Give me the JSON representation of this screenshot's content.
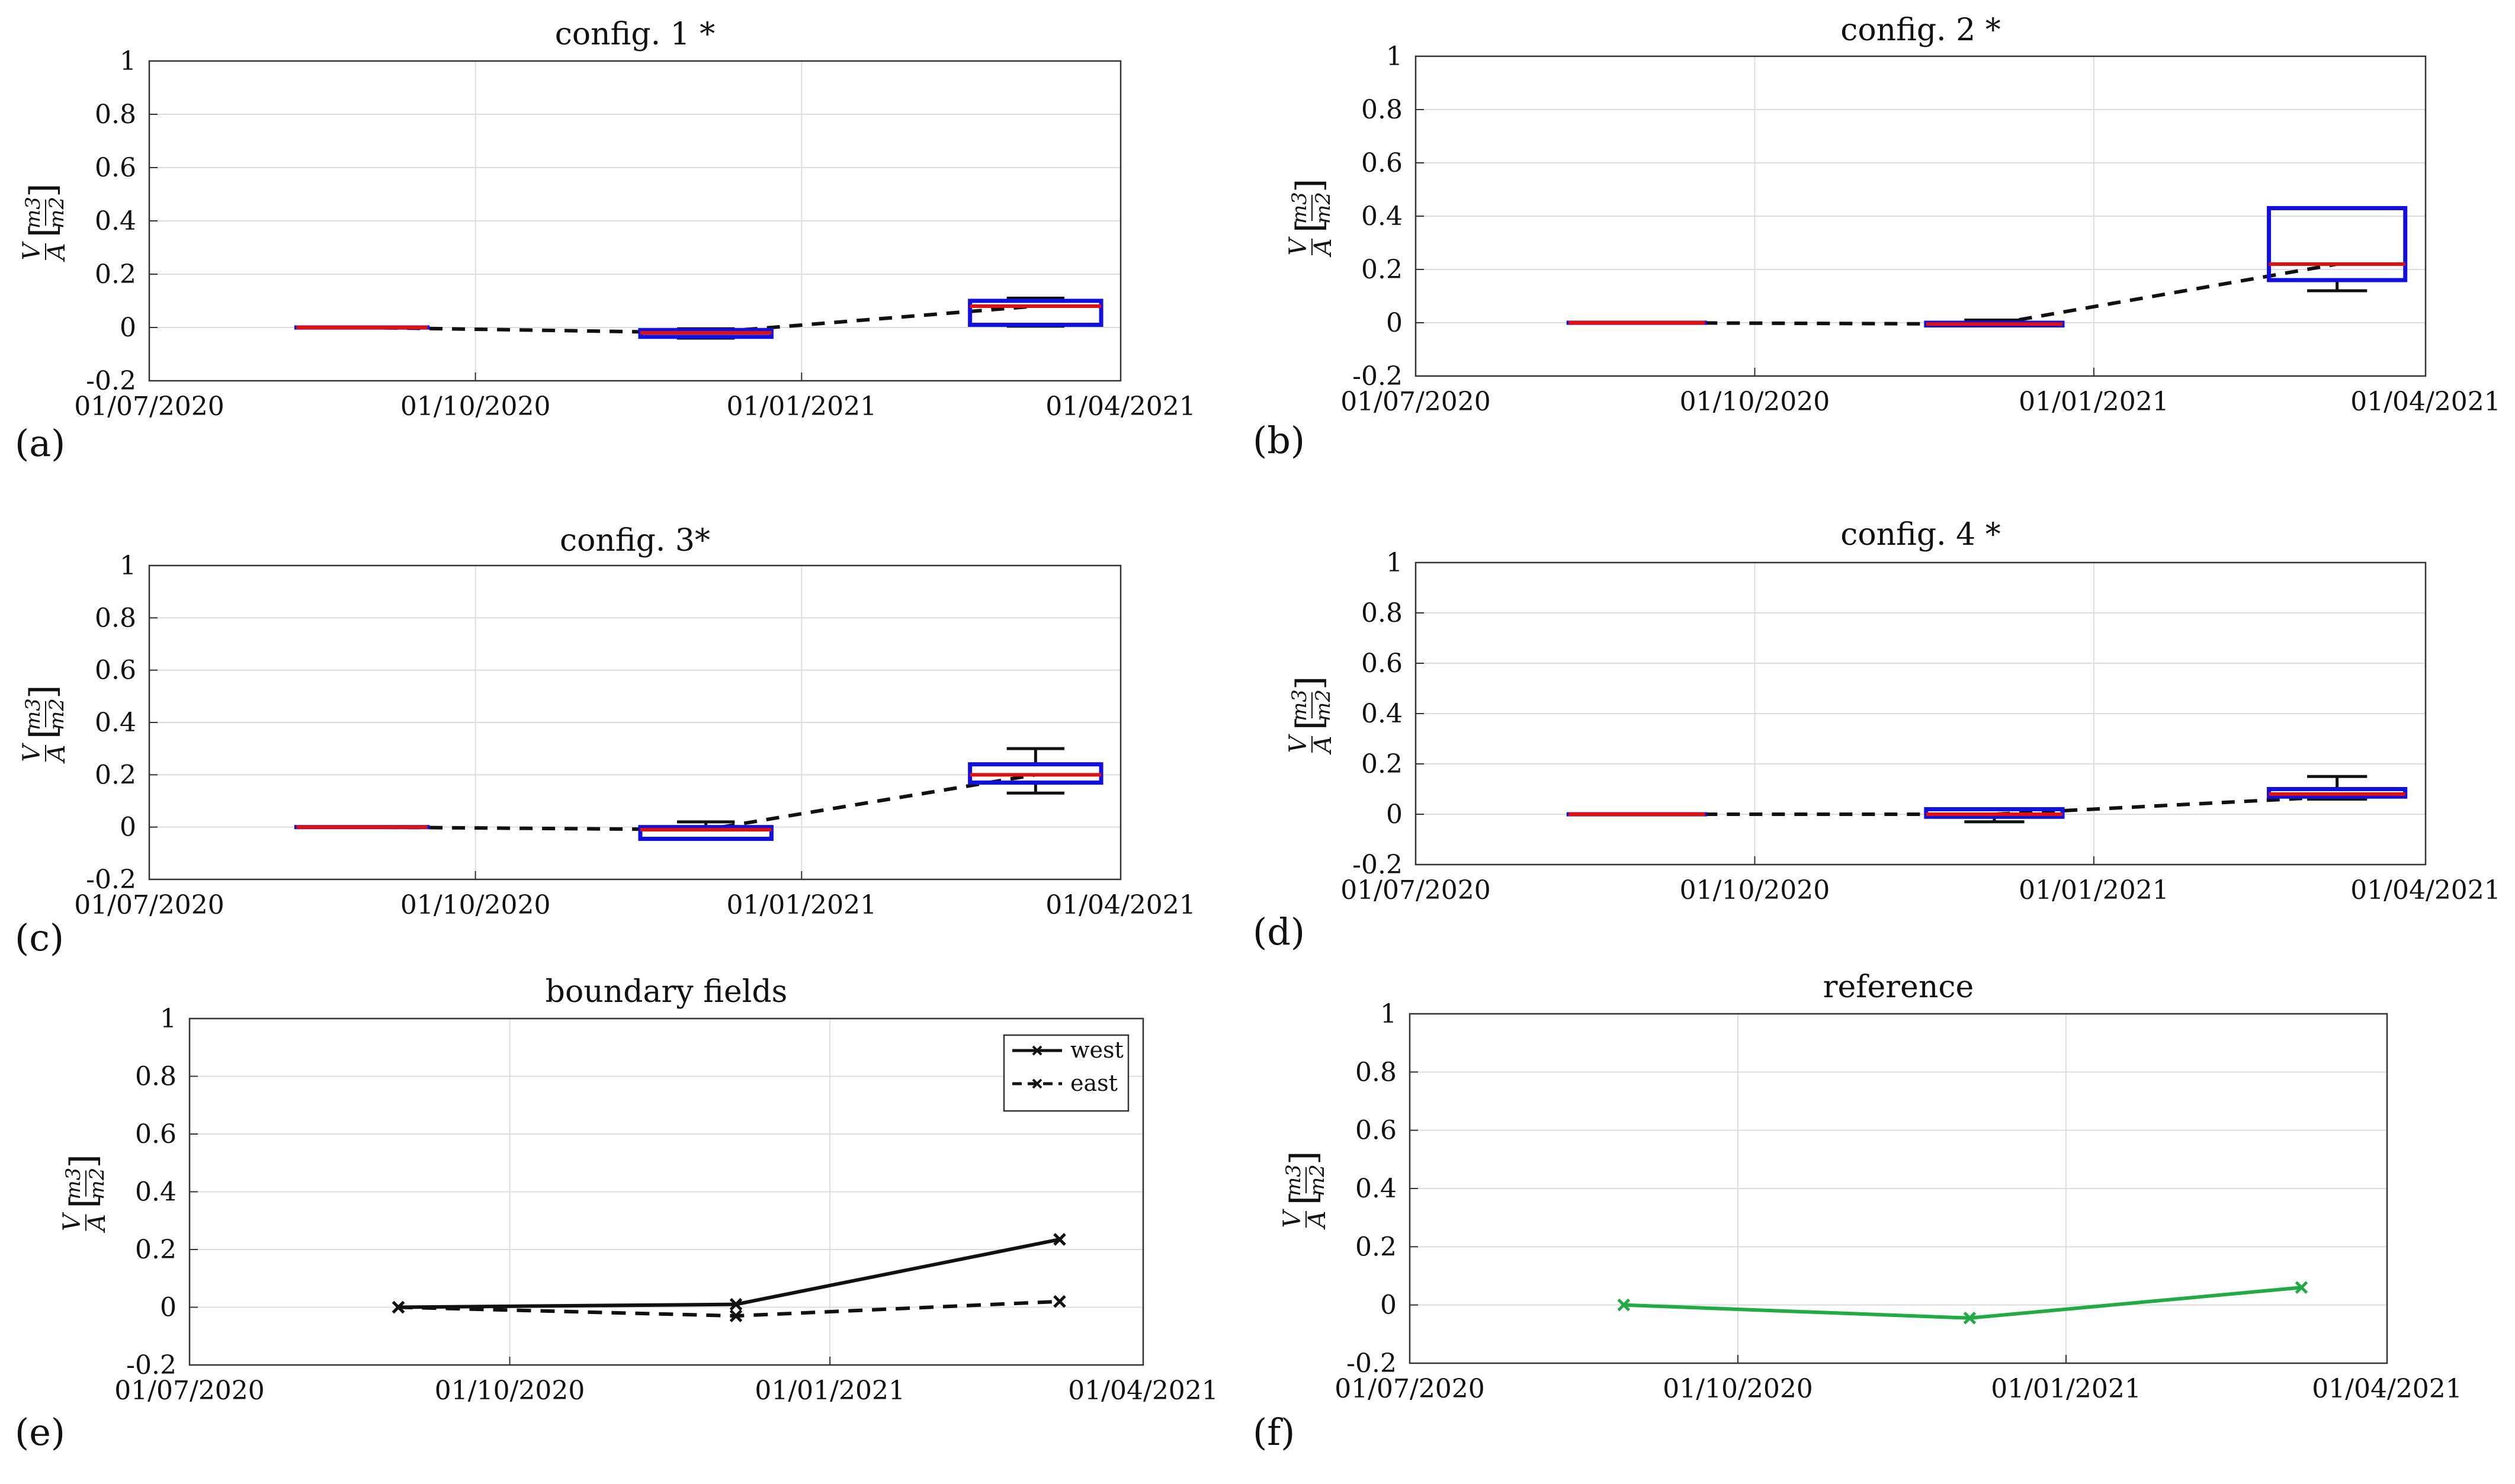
{
  "figure": {
    "panel_labels": [
      "(a)",
      "(b)",
      "(c)",
      "(d)",
      "(e)",
      "(f)"
    ],
    "ylabel": "V/A [m³/m²]",
    "ylabel_parts": {
      "num": "V",
      "den": "A",
      "unit_num": "m",
      "unit_num_exp": "3",
      "unit_den": "m",
      "unit_den_exp": "2"
    }
  },
  "colors": {
    "box": "#1010e0",
    "median": "#e01010",
    "whisker": "#111111",
    "mean_line": "#111111",
    "reference": "#22aa44",
    "grid": "#dddddd",
    "axes": "#333333"
  },
  "chart_data": [
    {
      "type": "box",
      "title": "config. 1 *",
      "xlabel": "",
      "ylabel": "V/A [m³/m²]",
      "xticks": [
        "01/07/2020",
        "01/10/2020",
        "01/01/2021",
        "01/04/2021"
      ],
      "xlim": [
        "2020-07-01",
        "2021-04-01"
      ],
      "ylim": [
        -0.2,
        1
      ],
      "yticks": [
        "-0.2",
        "0",
        "0.2",
        "0.4",
        "0.6",
        "0.8",
        "1"
      ],
      "grid": true,
      "boxes": [
        {
          "date": "2020-08-30",
          "q1": 0,
          "median": 0,
          "q3": 0,
          "whisker_low": 0,
          "whisker_high": 0
        },
        {
          "date": "2020-12-05",
          "q1": -0.035,
          "median": -0.02,
          "q3": -0.01,
          "whisker_low": -0.04,
          "whisker_high": -0.005
        },
        {
          "date": "2021-03-08",
          "q1": 0.01,
          "median": 0.08,
          "q3": 0.1,
          "whisker_low": 0.005,
          "whisker_high": 0.11
        }
      ],
      "mean_line": [
        0,
        -0.02,
        0.08
      ]
    },
    {
      "type": "box",
      "title": "config. 2 *",
      "xlabel": "",
      "ylabel": "V/A [m³/m²]",
      "xticks": [
        "01/07/2020",
        "01/10/2020",
        "01/01/2021",
        "01/04/2021"
      ],
      "xlim": [
        "2020-07-01",
        "2021-04-01"
      ],
      "ylim": [
        -0.2,
        1
      ],
      "yticks": [
        "-0.2",
        "0",
        "0.2",
        "0.4",
        "0.6",
        "0.8",
        "1"
      ],
      "grid": true,
      "boxes": [
        {
          "date": "2020-08-30",
          "q1": 0,
          "median": 0,
          "q3": 0,
          "whisker_low": 0,
          "whisker_high": 0
        },
        {
          "date": "2020-12-05",
          "q1": -0.01,
          "median": -0.005,
          "q3": 0.0,
          "whisker_low": -0.01,
          "whisker_high": 0.01
        },
        {
          "date": "2021-03-08",
          "q1": 0.16,
          "median": 0.22,
          "q3": 0.43,
          "whisker_low": 0.12,
          "whisker_high": 0.43
        }
      ],
      "mean_line": [
        0,
        -0.005,
        0.22
      ]
    },
    {
      "type": "box",
      "title": "config. 3*",
      "xlabel": "",
      "ylabel": "V/A [m³/m²]",
      "xticks": [
        "01/07/2020",
        "01/10/2020",
        "01/01/2021",
        "01/04/2021"
      ],
      "xlim": [
        "2020-07-01",
        "2021-04-01"
      ],
      "ylim": [
        -0.2,
        1
      ],
      "yticks": [
        "-0.2",
        "0",
        "0.2",
        "0.4",
        "0.6",
        "0.8",
        "1"
      ],
      "grid": true,
      "boxes": [
        {
          "date": "2020-08-30",
          "q1": 0,
          "median": 0,
          "q3": 0,
          "whisker_low": 0,
          "whisker_high": 0
        },
        {
          "date": "2020-12-05",
          "q1": -0.045,
          "median": -0.01,
          "q3": 0.0,
          "whisker_low": -0.045,
          "whisker_high": 0.02
        },
        {
          "date": "2021-03-08",
          "q1": 0.17,
          "median": 0.2,
          "q3": 0.24,
          "whisker_low": 0.13,
          "whisker_high": 0.3
        }
      ],
      "mean_line": [
        0,
        -0.01,
        0.2
      ]
    },
    {
      "type": "box",
      "title": "config. 4 *",
      "xlabel": "",
      "ylabel": "V/A [m³/m²]",
      "xticks": [
        "01/07/2020",
        "01/10/2020",
        "01/01/2021",
        "01/04/2021"
      ],
      "xlim": [
        "2020-07-01",
        "2021-04-01"
      ],
      "ylim": [
        -0.2,
        1
      ],
      "yticks": [
        "-0.2",
        "0",
        "0.2",
        "0.4",
        "0.6",
        "0.8",
        "1"
      ],
      "grid": true,
      "boxes": [
        {
          "date": "2020-08-30",
          "q1": 0,
          "median": 0,
          "q3": 0,
          "whisker_low": 0,
          "whisker_high": 0
        },
        {
          "date": "2020-12-05",
          "q1": -0.01,
          "median": 0.0,
          "q3": 0.02,
          "whisker_low": -0.03,
          "whisker_high": 0.02
        },
        {
          "date": "2021-03-08",
          "q1": 0.07,
          "median": 0.08,
          "q3": 0.1,
          "whisker_low": 0.06,
          "whisker_high": 0.15
        }
      ],
      "mean_line": [
        0,
        0.0,
        0.07
      ]
    },
    {
      "type": "line",
      "title": "boundary fields",
      "xlabel": "",
      "ylabel": "V/A [m³/m²]",
      "xticks": [
        "01/07/2020",
        "01/10/2020",
        "01/01/2021",
        "01/04/2021"
      ],
      "xlim": [
        "2020-07-01",
        "2021-04-01"
      ],
      "ylim": [
        -0.2,
        1
      ],
      "yticks": [
        "-0.2",
        "0",
        "0.2",
        "0.4",
        "0.6",
        "0.8",
        "1"
      ],
      "grid": true,
      "legend_position": "top-right",
      "series": [
        {
          "name": "west",
          "style": "solid",
          "x": [
            "2020-08-30",
            "2020-12-05",
            "2021-03-08"
          ],
          "values": [
            0,
            0.01,
            0.235
          ]
        },
        {
          "name": "east",
          "style": "dashed",
          "x": [
            "2020-08-30",
            "2020-12-05",
            "2021-03-08"
          ],
          "values": [
            0,
            -0.03,
            0.02
          ]
        }
      ]
    },
    {
      "type": "line",
      "title": "reference",
      "xlabel": "",
      "ylabel": "V/A [m³/m²]",
      "xticks": [
        "01/07/2020",
        "01/10/2020",
        "01/01/2021",
        "01/04/2021"
      ],
      "xlim": [
        "2020-07-01",
        "2021-04-01"
      ],
      "ylim": [
        -0.2,
        1
      ],
      "yticks": [
        "-0.2",
        "0",
        "0.2",
        "0.4",
        "0.6",
        "0.8",
        "1"
      ],
      "grid": true,
      "series": [
        {
          "name": "reference",
          "style": "solid",
          "x": [
            "2020-08-30",
            "2020-12-05",
            "2021-03-08"
          ],
          "values": [
            0,
            -0.045,
            0.06
          ]
        }
      ]
    }
  ]
}
